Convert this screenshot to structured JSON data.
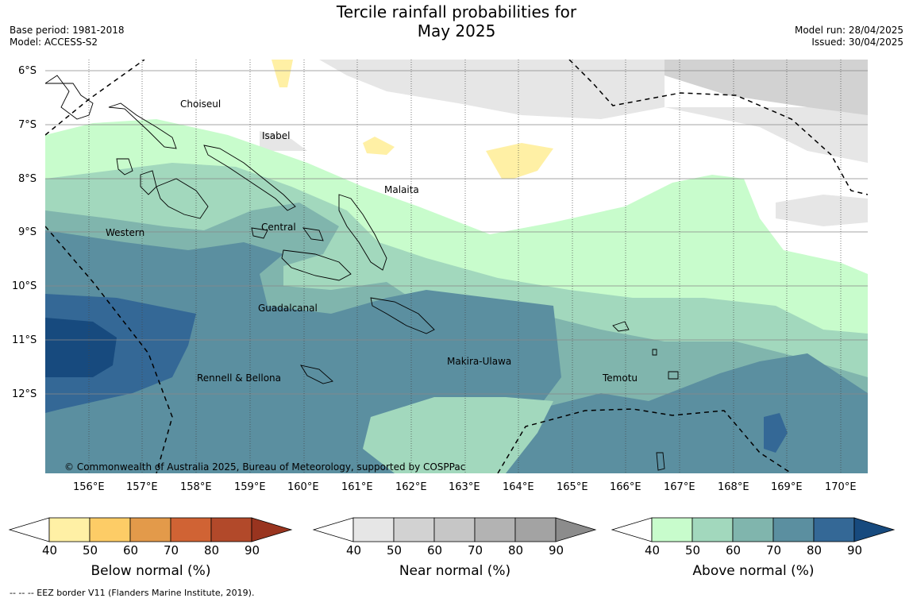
{
  "header": {
    "title_line1": "Tercile rainfall probabilities for",
    "title_line2": "May 2025",
    "base_period": "Base period: 1981-2018",
    "model": "Model: ACCESS-S2",
    "model_run": "Model run: 28/04/2025",
    "issued": "Issued: 30/04/2025"
  },
  "map": {
    "lat_labels": [
      "6°S",
      "7°S",
      "8°S",
      "9°S",
      "10°S",
      "11°S",
      "12°S"
    ],
    "lon_labels": [
      "156°E",
      "157°E",
      "158°E",
      "159°E",
      "160°E",
      "161°E",
      "162°E",
      "163°E",
      "164°E",
      "165°E",
      "166°E",
      "167°E",
      "168°E",
      "169°E",
      "170°E"
    ],
    "places": {
      "choiseul": "Choiseul",
      "isabel": "Isabel",
      "malaita": "Malaita",
      "western": "Western",
      "central": "Central",
      "guadalcanal": "Guadalcanal",
      "makira": "Makira-Ulawa",
      "rennell": "Rennell & Bellona",
      "temotu": "Temotu"
    },
    "copyright": "© Commonwealth of Australia 2025, Bureau of Meteorology, supported by COSPPac"
  },
  "colorbars": {
    "ticks": [
      "40",
      "50",
      "60",
      "70",
      "80",
      "90"
    ],
    "below": {
      "title": "Below normal (%)",
      "colors": [
        "#fff0a5",
        "#fdcc66",
        "#e39a4a",
        "#d06334",
        "#b2492a",
        "#99341f"
      ]
    },
    "near": {
      "title": "Near normal (%)",
      "colors": [
        "#e6e6e6",
        "#d2d2d2",
        "#c6c6c6",
        "#b3b3b3",
        "#a3a3a3",
        "#8c8c8c"
      ]
    },
    "above": {
      "title": "Above normal (%)",
      "colors": [
        "#c8fccc",
        "#a2d8bd",
        "#80b5ad",
        "#5b8fa0",
        "#346896",
        "#174a7e"
      ]
    }
  },
  "footnote": "--  --  -- EEZ border V11 (Flanders Marine Institute, 2019)."
}
